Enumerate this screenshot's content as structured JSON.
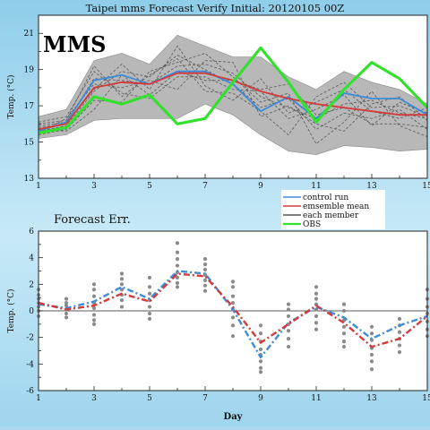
{
  "chart_data": [
    {
      "type": "line",
      "title": "Taipei    mms  Forecast Verify    Initial: 20120105 00Z",
      "badge": "MMS",
      "ylabel": "Temp. (°C)",
      "xlabel": "",
      "xlim": [
        1,
        15
      ],
      "ylim": [
        13,
        22
      ],
      "xticks": [
        1,
        3,
        5,
        7,
        9,
        11,
        13,
        15
      ],
      "yticks": [
        13,
        15,
        17,
        19,
        21
      ],
      "grid": false,
      "legend_position": "bottom-right",
      "spread": {
        "x": [
          1,
          2,
          3,
          4,
          5,
          6,
          7,
          8,
          9,
          10,
          11,
          12,
          13,
          14,
          15
        ],
        "upper": [
          16.4,
          16.8,
          19.5,
          19.9,
          19.3,
          20.9,
          20.3,
          19.7,
          19.7,
          18.6,
          17.9,
          18.9,
          18.3,
          17.9,
          17.1
        ],
        "lower": [
          15.2,
          15.4,
          16.2,
          16.3,
          16.3,
          16.3,
          17.1,
          16.5,
          15.4,
          14.5,
          14.3,
          14.8,
          14.7,
          14.5,
          14.6
        ]
      },
      "members": [
        {
          "values": [
            15.9,
            16.1,
            18.5,
            18.4,
            18.2,
            19.2,
            19.3,
            18.8,
            17.5,
            16.9,
            16.3,
            17.1,
            17.3,
            16.6,
            16.3
          ]
        },
        {
          "values": [
            15.6,
            15.9,
            17.8,
            18.9,
            18.6,
            19.8,
            19.0,
            18.2,
            16.9,
            17.4,
            15.7,
            16.6,
            16.3,
            16.8,
            15.7
          ]
        },
        {
          "values": [
            16.1,
            16.4,
            18.9,
            17.7,
            17.4,
            18.6,
            18.6,
            17.9,
            17.8,
            16.3,
            16.8,
            17.6,
            15.9,
            17.2,
            16.6
          ]
        },
        {
          "values": [
            15.4,
            15.7,
            17.3,
            17.2,
            18.9,
            19.4,
            19.9,
            18.6,
            17.2,
            17.7,
            14.9,
            16.1,
            17.8,
            15.9,
            15.3
          ]
        },
        {
          "values": [
            15.8,
            16.0,
            17.9,
            19.3,
            17.9,
            20.3,
            18.1,
            17.3,
            18.5,
            16.6,
            17.2,
            17.9,
            16.7,
            16.3,
            16.9
          ]
        },
        {
          "values": [
            15.5,
            16.3,
            18.2,
            18.0,
            18.4,
            17.9,
            19.5,
            19.4,
            16.4,
            17.0,
            16.0,
            15.6,
            17.1,
            17.5,
            16.2
          ]
        },
        {
          "values": [
            15.7,
            15.6,
            16.8,
            18.7,
            17.6,
            18.9,
            18.4,
            18.4,
            17.9,
            18.2,
            16.5,
            16.9,
            16.0,
            16.0,
            15.8
          ]
        },
        {
          "values": [
            16.0,
            16.2,
            19.2,
            17.5,
            18.7,
            19.6,
            17.8,
            17.7,
            16.7,
            15.4,
            17.5,
            18.3,
            16.9,
            17.0,
            16.4
          ]
        }
      ],
      "series": [
        {
          "name": "control run",
          "color": "#3d8bd9",
          "values": [
            15.6,
            16.1,
            18.4,
            18.7,
            18.2,
            18.9,
            18.9,
            18.2,
            16.7,
            17.5,
            16.3,
            17.7,
            17.4,
            17.4,
            16.5
          ]
        },
        {
          "name": "emsemble mean",
          "color": "#d33a3a",
          "values": [
            15.7,
            16.0,
            18.0,
            18.3,
            18.2,
            18.8,
            18.8,
            18.4,
            17.8,
            17.4,
            17.1,
            16.9,
            16.7,
            16.5,
            16.5
          ]
        },
        {
          "name": "each member",
          "color": "#555555",
          "values": []
        },
        {
          "name": "OBS",
          "color": "#33e02e",
          "values": [
            15.5,
            15.8,
            17.5,
            17.1,
            17.6,
            16.0,
            16.3,
            18.3,
            20.2,
            18.3,
            16.1,
            17.9,
            19.4,
            18.5,
            16.9
          ]
        }
      ]
    },
    {
      "type": "scatter",
      "title": "Forecast  Err.",
      "ylabel": "Temp. (°C)",
      "xlabel": "Day",
      "xlim": [
        1,
        15
      ],
      "ylim": [
        -6,
        6
      ],
      "xticks": [
        1,
        3,
        5,
        7,
        9,
        11,
        13,
        15
      ],
      "yticks": [
        -6,
        -4,
        -2,
        0,
        2,
        4,
        6
      ],
      "grid": false,
      "member_errors": [
        {
          "x": 1,
          "values": [
            1.6,
            1.2,
            0.9,
            0.6,
            0.3,
            0.0,
            -0.4
          ]
        },
        {
          "x": 2,
          "values": [
            0.9,
            0.6,
            0.4,
            0.1,
            -0.2,
            -0.5
          ]
        },
        {
          "x": 3,
          "values": [
            2.0,
            1.6,
            1.1,
            0.6,
            0.2,
            -0.3,
            -0.7,
            -1.0
          ]
        },
        {
          "x": 4,
          "values": [
            2.8,
            2.4,
            2.0,
            1.6,
            1.2,
            0.8,
            0.3
          ]
        },
        {
          "x": 5,
          "values": [
            2.5,
            1.8,
            1.3,
            0.8,
            0.3,
            -0.2,
            -0.6
          ]
        },
        {
          "x": 6,
          "values": [
            5.1,
            4.4,
            3.9,
            3.4,
            2.9,
            2.5,
            2.1,
            1.8
          ]
        },
        {
          "x": 7,
          "values": [
            3.9,
            3.5,
            3.1,
            2.7,
            2.3,
            1.9,
            1.5
          ]
        },
        {
          "x": 8,
          "values": [
            2.2,
            1.8,
            1.1,
            0.6,
            0.1,
            -0.5,
            -1.1,
            -1.9
          ]
        },
        {
          "x": 9,
          "values": [
            -1.1,
            -1.7,
            -2.3,
            -2.9,
            -3.3,
            -3.8,
            -4.3,
            -4.6
          ]
        },
        {
          "x": 10,
          "values": [
            0.5,
            0.1,
            -0.4,
            -1.0,
            -1.5,
            -2.1,
            -2.7
          ]
        },
        {
          "x": 11,
          "values": [
            1.8,
            1.3,
            0.9,
            0.5,
            0.1,
            -0.4,
            -0.9,
            -1.4
          ]
        },
        {
          "x": 12,
          "values": [
            0.5,
            0.0,
            -0.7,
            -1.2,
            -1.7,
            -2.3,
            -2.7
          ]
        },
        {
          "x": 13,
          "values": [
            -1.2,
            -1.7,
            -2.2,
            -2.8,
            -3.3,
            -3.8,
            -4.4
          ]
        },
        {
          "x": 14,
          "values": [
            -0.6,
            -1.1,
            -1.6,
            -2.1,
            -2.6,
            -3.1
          ]
        },
        {
          "x": 15,
          "values": [
            1.6,
            0.9,
            0.3,
            -0.2,
            -0.8,
            -1.4,
            -1.9
          ]
        }
      ],
      "series": [
        {
          "name": "control run",
          "color": "#3d8bd9",
          "values": [
            0.5,
            0.2,
            0.7,
            1.8,
            0.9,
            3.0,
            2.8,
            0.1,
            -3.5,
            -0.9,
            0.3,
            -0.5,
            -2.1,
            -1.1,
            -0.4
          ]
        },
        {
          "name": "emsemble mean",
          "color": "#d33a3a",
          "values": [
            0.6,
            0.1,
            0.4,
            1.3,
            0.7,
            2.8,
            2.6,
            0.3,
            -2.4,
            -1.0,
            0.4,
            -0.9,
            -2.7,
            -2.1,
            -0.4
          ]
        }
      ]
    }
  ]
}
